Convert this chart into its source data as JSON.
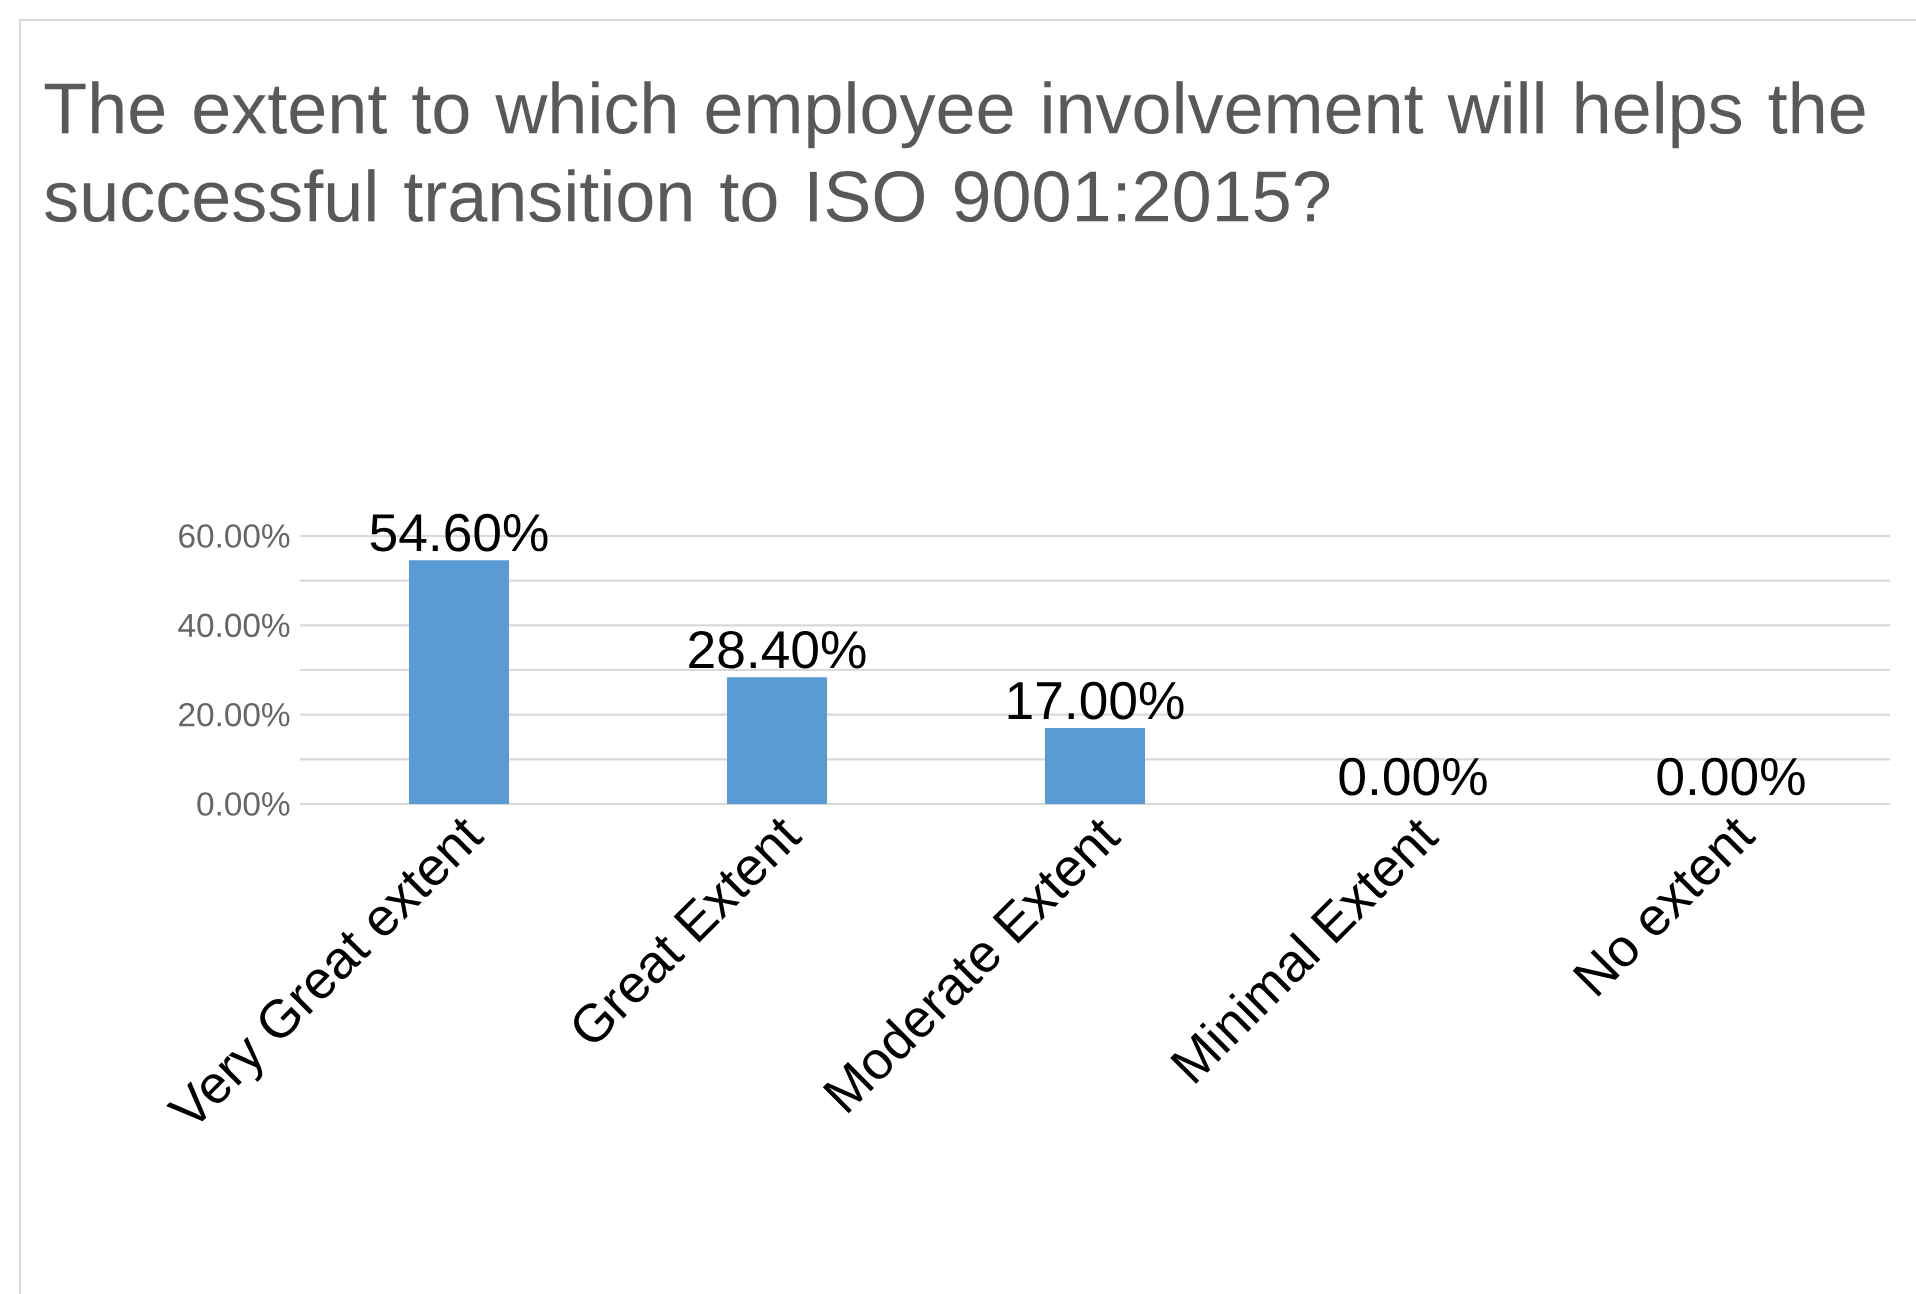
{
  "chart_data": {
    "type": "bar",
    "title": "The extent to which employee involvement will helps the successful transition to ISO 9001:2015?",
    "categories": [
      "Very Great extent",
      "Great Extent",
      "Moderate Extent",
      "Minimal Extent",
      "No extent"
    ],
    "values": [
      54.6,
      28.4,
      17.0,
      0.0,
      0.0
    ],
    "value_labels": [
      "54.60%",
      "28.40%",
      "17.00%",
      "0.00%",
      "0.00%"
    ],
    "color": "#5b9bd5",
    "ylim": [
      0,
      60
    ],
    "yticks": [
      {
        "value": 0,
        "label": "0.00%"
      },
      {
        "value": 10,
        "label": null
      },
      {
        "value": 20,
        "label": "20.00%"
      },
      {
        "value": 30,
        "label": null
      },
      {
        "value": 40,
        "label": "40.00%"
      },
      {
        "value": 50,
        "label": null
      },
      {
        "value": 60,
        "label": "60.00%"
      }
    ],
    "grid": "y"
  }
}
